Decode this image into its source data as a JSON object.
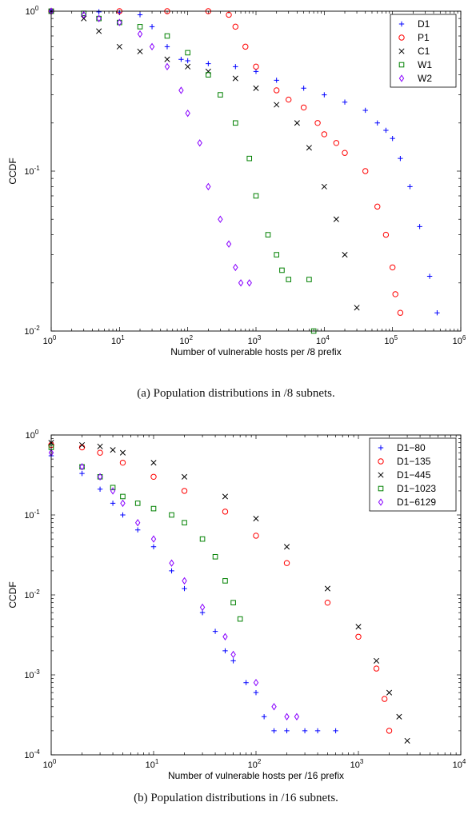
{
  "chart_data": [
    {
      "type": "scatter",
      "xscale": "log",
      "yscale": "log",
      "xlim": [
        1,
        1000000
      ],
      "ylim": [
        0.01,
        1
      ],
      "xlabel": "Number of vulnerable hosts per /8 prefix",
      "ylabel": "CCDF",
      "caption": "(a) Population distributions in /8 subnets.",
      "legend_position": "top-right",
      "x_tick_labels": [
        {
          "base": "10",
          "exp": "0"
        },
        {
          "base": "10",
          "exp": "1"
        },
        {
          "base": "10",
          "exp": "2"
        },
        {
          "base": "10",
          "exp": "3"
        },
        {
          "base": "10",
          "exp": "4"
        },
        {
          "base": "10",
          "exp": "5"
        },
        {
          "base": "10",
          "exp": "6"
        }
      ],
      "y_tick_labels": [
        {
          "base": "10",
          "exp": "-2"
        },
        {
          "base": "10",
          "exp": "-1"
        },
        {
          "base": "10",
          "exp": "0"
        }
      ],
      "series": [
        {
          "name": "D1",
          "color": "#0000ff",
          "marker": "plus",
          "x": [
            1,
            5,
            10,
            20,
            30,
            50,
            80,
            100,
            200,
            500,
            1000,
            2000,
            5000,
            10000,
            20000,
            40000,
            60000,
            80000,
            100000,
            130000,
            180000,
            250000,
            350000,
            450000
          ],
          "y": [
            1,
            0.99,
            0.98,
            0.95,
            0.8,
            0.6,
            0.5,
            0.49,
            0.47,
            0.45,
            0.42,
            0.37,
            0.33,
            0.3,
            0.27,
            0.24,
            0.2,
            0.18,
            0.16,
            0.12,
            0.08,
            0.045,
            0.022,
            0.013
          ]
        },
        {
          "name": "P1",
          "color": "#ff0000",
          "marker": "circle",
          "x": [
            1,
            10,
            50,
            200,
            400,
            500,
            700,
            1000,
            2000,
            3000,
            5000,
            8000,
            10000,
            15000,
            20000,
            40000,
            60000,
            80000,
            100000,
            110000,
            130000
          ],
          "y": [
            1,
            1,
            1,
            1,
            0.95,
            0.8,
            0.6,
            0.45,
            0.32,
            0.28,
            0.25,
            0.2,
            0.17,
            0.15,
            0.13,
            0.1,
            0.06,
            0.04,
            0.025,
            0.017,
            0.013
          ]
        },
        {
          "name": "C1",
          "color": "#000000",
          "marker": "x",
          "x": [
            1,
            3,
            5,
            10,
            20,
            50,
            100,
            200,
            500,
            1000,
            2000,
            4000,
            6000,
            10000,
            15000,
            20000,
            30000
          ],
          "y": [
            1,
            0.9,
            0.75,
            0.6,
            0.56,
            0.5,
            0.45,
            0.42,
            0.38,
            0.33,
            0.26,
            0.2,
            0.14,
            0.08,
            0.05,
            0.03,
            0.014
          ]
        },
        {
          "name": "W1",
          "color": "#008000",
          "marker": "square",
          "x": [
            1,
            3,
            5,
            10,
            20,
            50,
            100,
            200,
            300,
            500,
            800,
            1000,
            1500,
            2000,
            2400,
            3000,
            6000,
            7000
          ],
          "y": [
            1,
            0.97,
            0.9,
            0.85,
            0.8,
            0.7,
            0.55,
            0.4,
            0.3,
            0.2,
            0.12,
            0.07,
            0.04,
            0.03,
            0.024,
            0.021,
            0.021,
            0.01
          ]
        },
        {
          "name": "W2",
          "color": "#8800ff",
          "marker": "diamond",
          "x": [
            1,
            3,
            5,
            10,
            20,
            30,
            50,
            80,
            100,
            150,
            200,
            300,
            400,
            500,
            600,
            800
          ],
          "y": [
            1,
            0.95,
            0.9,
            0.85,
            0.72,
            0.6,
            0.45,
            0.32,
            0.23,
            0.15,
            0.08,
            0.05,
            0.035,
            0.025,
            0.02,
            0.02
          ]
        }
      ]
    },
    {
      "type": "scatter",
      "xscale": "log",
      "yscale": "log",
      "xlim": [
        1,
        10000
      ],
      "ylim": [
        0.0001,
        1
      ],
      "xlabel": "Number of vulnerable hosts per /16 prefix",
      "ylabel": "CCDF",
      "caption": "(b) Population distributions in /16 subnets.",
      "legend_position": "top-right",
      "x_tick_labels": [
        {
          "base": "10",
          "exp": "0"
        },
        {
          "base": "10",
          "exp": "1"
        },
        {
          "base": "10",
          "exp": "2"
        },
        {
          "base": "10",
          "exp": "3"
        },
        {
          "base": "10",
          "exp": "4"
        }
      ],
      "y_tick_labels": [
        {
          "base": "10",
          "exp": "-4"
        },
        {
          "base": "10",
          "exp": "-3"
        },
        {
          "base": "10",
          "exp": "-2"
        },
        {
          "base": "10",
          "exp": "-1"
        },
        {
          "base": "10",
          "exp": "0"
        }
      ],
      "series": [
        {
          "name": "D1−80",
          "color": "#0000ff",
          "marker": "plus",
          "x": [
            1,
            2,
            3,
            4,
            5,
            7,
            10,
            15,
            20,
            30,
            40,
            50,
            60,
            80,
            100,
            120,
            150,
            200,
            300,
            400,
            600
          ],
          "y": [
            0.55,
            0.33,
            0.21,
            0.14,
            0.1,
            0.065,
            0.04,
            0.02,
            0.012,
            0.006,
            0.0035,
            0.002,
            0.0015,
            0.0008,
            0.0006,
            0.0003,
            0.0002,
            0.0002,
            0.0002,
            0.0002,
            0.0002
          ]
        },
        {
          "name": "D1−135",
          "color": "#ff0000",
          "marker": "circle",
          "x": [
            1,
            2,
            3,
            5,
            10,
            20,
            50,
            100,
            200,
            500,
            1000,
            1500,
            1800,
            2000
          ],
          "y": [
            0.75,
            0.7,
            0.6,
            0.45,
            0.3,
            0.2,
            0.11,
            0.055,
            0.025,
            0.008,
            0.003,
            0.0012,
            0.0005,
            0.0002
          ]
        },
        {
          "name": "D1−445",
          "color": "#000000",
          "marker": "x",
          "x": [
            1,
            2,
            3,
            4,
            5,
            10,
            20,
            50,
            100,
            200,
            500,
            1000,
            1500,
            2000,
            2500,
            3000
          ],
          "y": [
            0.8,
            0.75,
            0.72,
            0.65,
            0.6,
            0.45,
            0.3,
            0.17,
            0.09,
            0.04,
            0.012,
            0.004,
            0.0015,
            0.0006,
            0.0003,
            0.00015
          ]
        },
        {
          "name": "D1−1023",
          "color": "#008000",
          "marker": "square",
          "x": [
            1,
            2,
            3,
            4,
            5,
            7,
            10,
            15,
            20,
            30,
            40,
            50,
            60,
            70
          ],
          "y": [
            0.7,
            0.4,
            0.3,
            0.22,
            0.17,
            0.14,
            0.12,
            0.1,
            0.08,
            0.05,
            0.03,
            0.015,
            0.008,
            0.005
          ]
        },
        {
          "name": "D1−6129",
          "color": "#8800ff",
          "marker": "diamond",
          "x": [
            1,
            2,
            3,
            4,
            5,
            7,
            10,
            15,
            20,
            30,
            50,
            60,
            100,
            150,
            200,
            250
          ],
          "y": [
            0.6,
            0.4,
            0.3,
            0.2,
            0.14,
            0.08,
            0.05,
            0.025,
            0.015,
            0.007,
            0.003,
            0.0018,
            0.0008,
            0.0004,
            0.0003,
            0.0003
          ]
        }
      ]
    }
  ]
}
